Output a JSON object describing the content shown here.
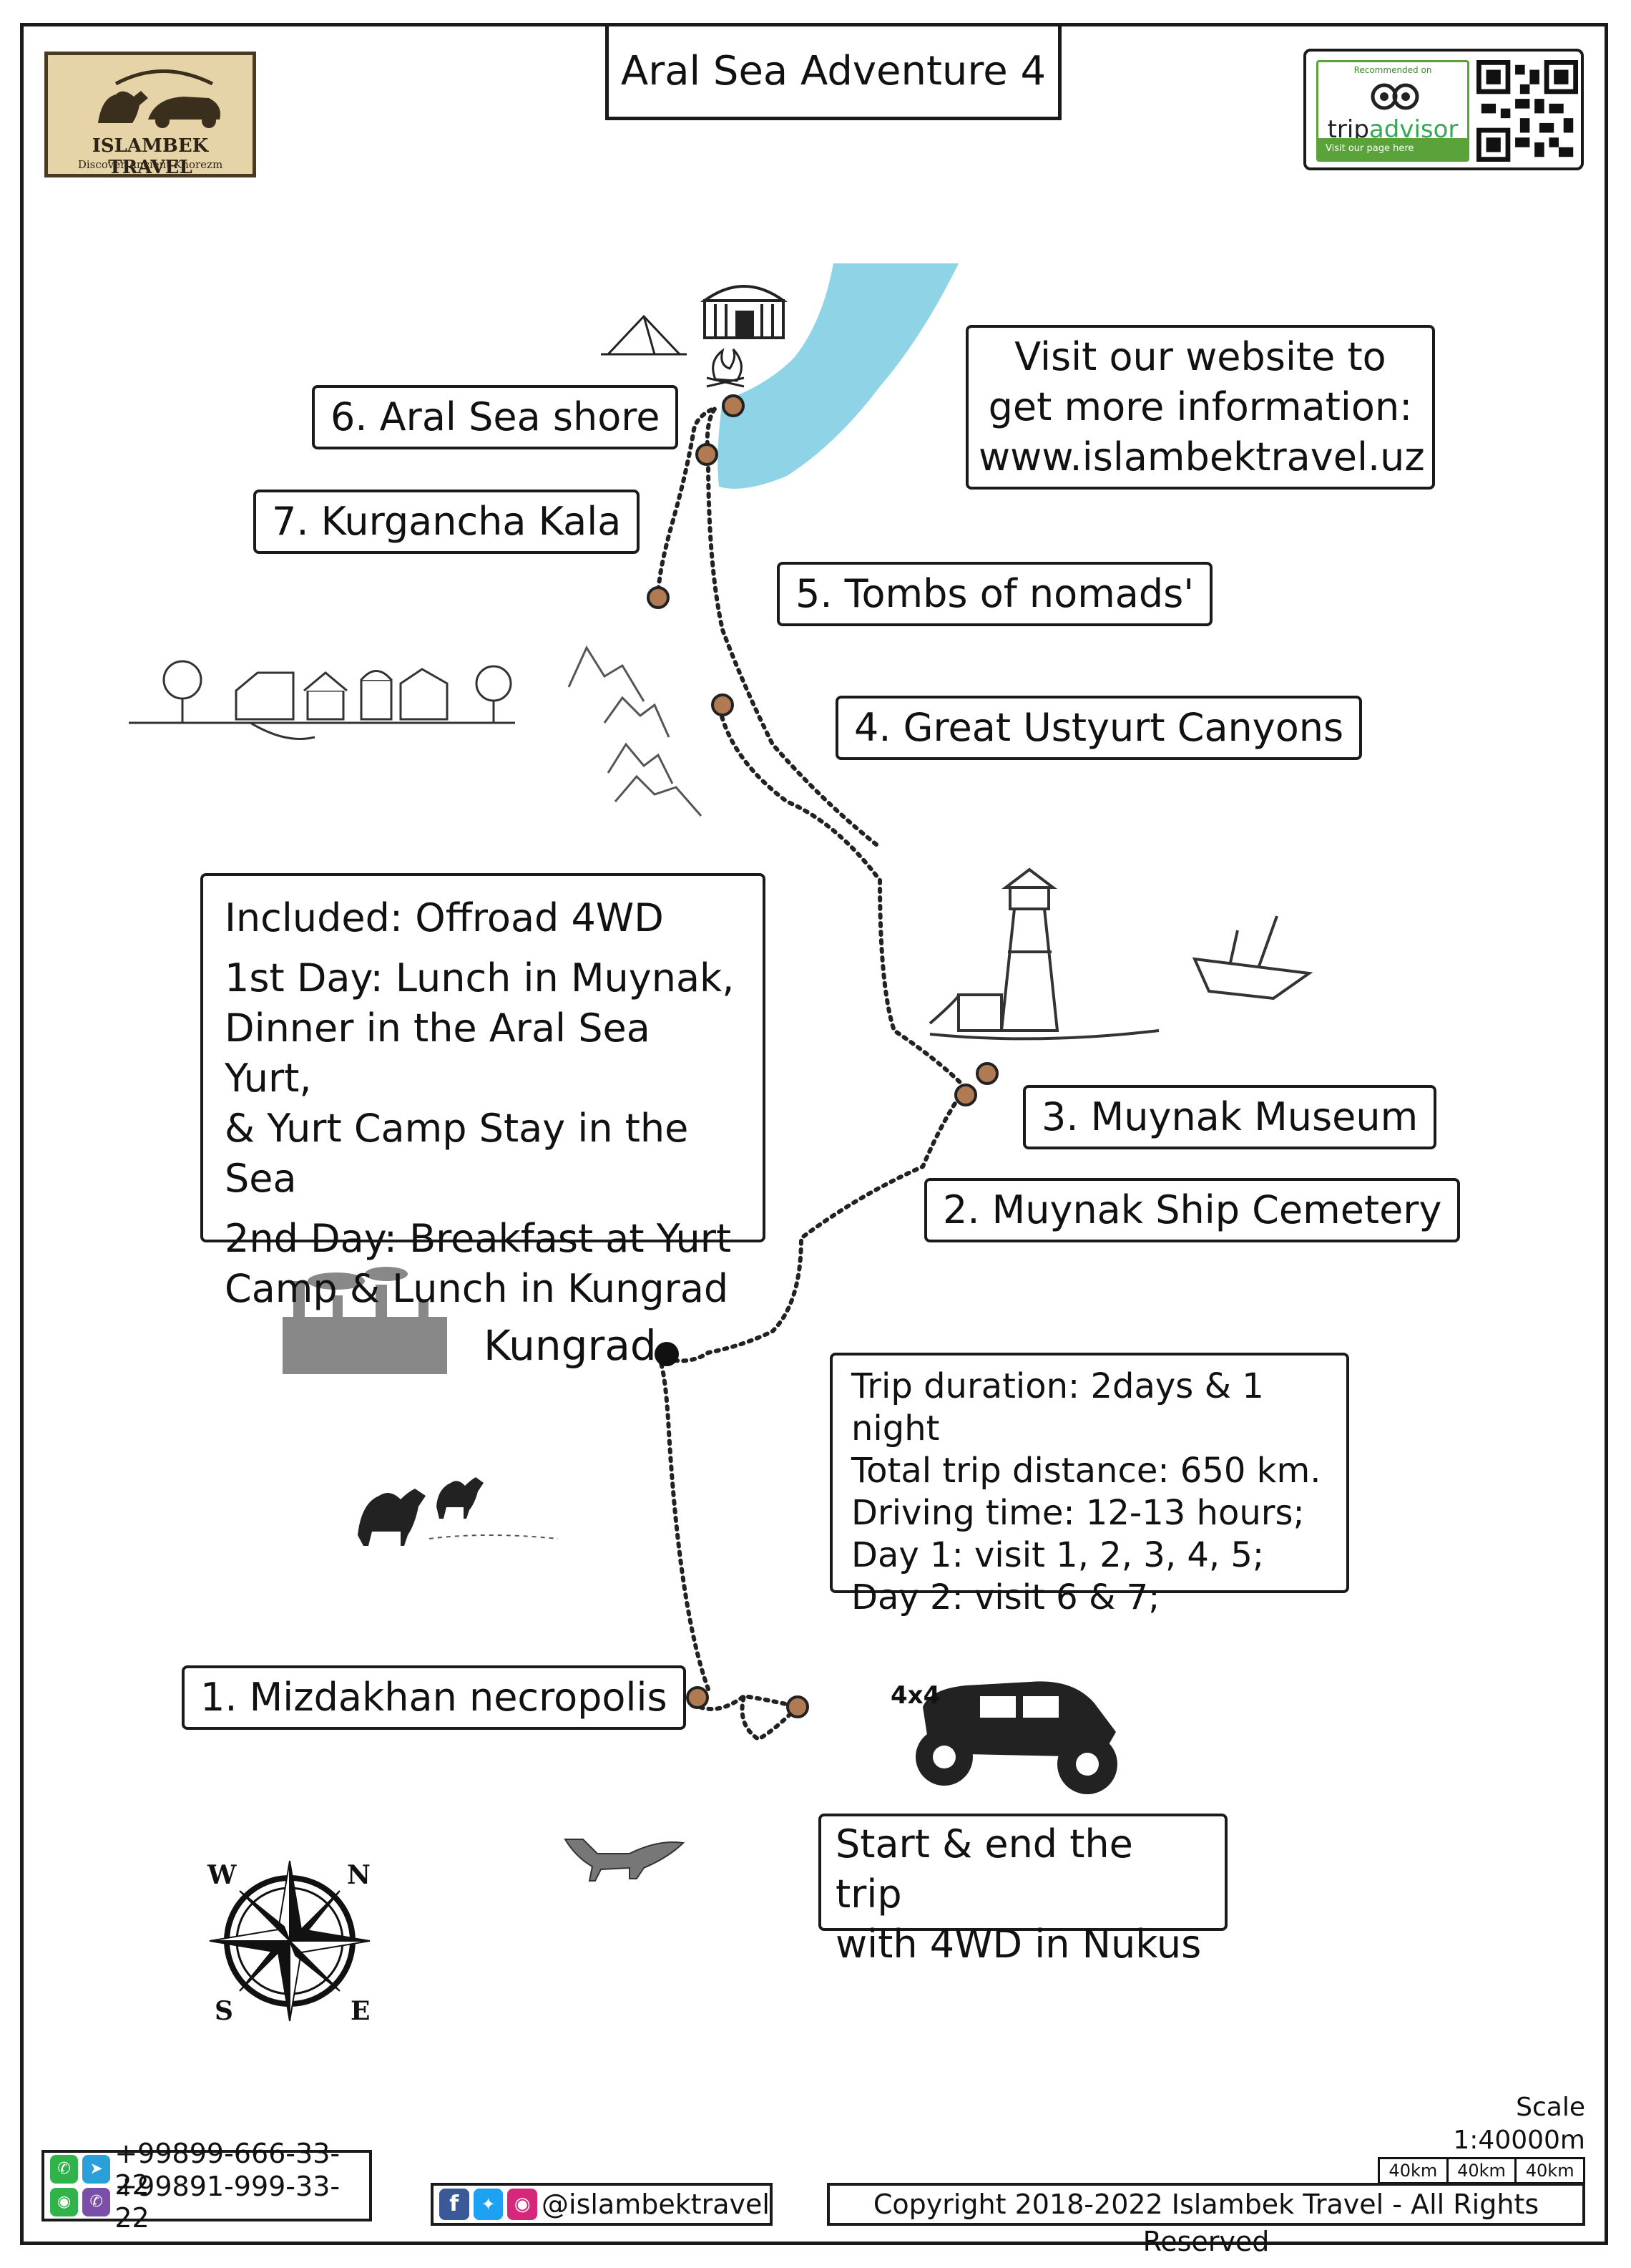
{
  "title": "Aral Sea Adventure 4",
  "logo": {
    "name": "ISLAMBEK TRAVEL",
    "tagline": "Discover Ancient Khorezm"
  },
  "tripadvisor": {
    "recommended": "Recommended on",
    "brand_prefix": "trip",
    "brand_suffix": "advisor",
    "visit": "Visit our page here"
  },
  "website_box": {
    "lines": [
      "Visit our website to",
      "get more information:",
      "www.islambektravel.uz"
    ]
  },
  "stops": [
    {
      "label": "6. Aral Sea shore"
    },
    {
      "label": "7. Kurgancha Kala"
    },
    {
      "label": "5. Tombs of nomads'"
    },
    {
      "label": "4. Great Ustyurt Canyons"
    },
    {
      "label": "3. Muynak Museum"
    },
    {
      "label": "2. Muynak Ship Cemetery"
    },
    {
      "label": "1. Mizdakhan necropolis"
    }
  ],
  "town": "Kungrad",
  "included": {
    "heading": "Included: Offroad 4WD",
    "day1": [
      "1st Day: Lunch in Muynak,",
      "Dinner in the Aral Sea Yurt,",
      "& Yurt Camp Stay in the Sea"
    ],
    "day2": [
      "2nd Day: Breakfast at Yurt",
      "Camp & Lunch in Kungrad"
    ]
  },
  "trip_info": [
    "Trip duration: 2days & 1 night",
    "Total trip distance: 650 km.",
    "Driving time: 12-13 hours;",
    "Day 1: visit 1, 2, 3, 4,  5;",
    "Day 2: visit  6 & 7;"
  ],
  "vehicle_badge": "4x4",
  "start_box": [
    "Start & end the trip",
    "with 4WD in Nukus"
  ],
  "compass": {
    "w": "W",
    "n": "N",
    "s": "S",
    "e": "E"
  },
  "scale": {
    "title": "Scale 1:40000m",
    "segments": [
      "40km",
      "40km",
      "40km"
    ]
  },
  "contacts": {
    "phone1": "+99899-666-33-22",
    "phone2": "+99891-999-33-22"
  },
  "social_handle": "@islambektravel",
  "copyright": "Copyright 2018-2022 Islambek Travel - All Rights Reserved",
  "colors": {
    "sea": "#8fd3e6",
    "stop_marker": "#b07a52",
    "logo_bg": "#e6d4a8",
    "tripadvisor_green": "#5aa23a"
  },
  "icons": [
    "whatsapp-icon",
    "telegram-icon",
    "wechat-icon",
    "viber-icon",
    "facebook-icon",
    "twitter-icon",
    "instagram-icon",
    "compass-rose-icon",
    "yurt-icon",
    "tent-icon",
    "campfire-icon",
    "lighthouse-icon",
    "shipwreck-icon",
    "farm-icon",
    "mountains-icon",
    "factory-icon",
    "camels-icon",
    "fox-icon",
    "offroad-car-icon",
    "camel-car-logo-icon",
    "owl-icon",
    "qr-code-icon"
  ]
}
